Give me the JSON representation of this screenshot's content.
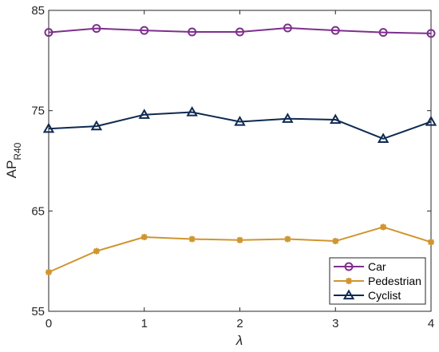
{
  "chart_data": {
    "type": "line",
    "title": "",
    "xlabel": "λ",
    "ylabel": "AP",
    "ylabel_subscript": "R40",
    "xlim": [
      0,
      4
    ],
    "ylim": [
      55,
      85
    ],
    "x_ticks": [
      0,
      1,
      2,
      3,
      4
    ],
    "y_ticks": [
      55,
      65,
      75,
      85
    ],
    "x_tick_labels": [
      "0",
      "1",
      "2",
      "3",
      "4"
    ],
    "y_tick_labels": [
      "55",
      "65",
      "75",
      "85"
    ],
    "grid": false,
    "legend_position": "bottom-right",
    "x": [
      0,
      0.5,
      1,
      1.5,
      2,
      2.5,
      3,
      3.5,
      4
    ],
    "series": [
      {
        "name": "Car",
        "color": "#7E2F8E",
        "marker": "circle",
        "values": [
          82.8,
          83.2,
          83.0,
          82.85,
          82.85,
          83.25,
          83.0,
          82.8,
          82.7
        ]
      },
      {
        "name": "Pedestrian",
        "color": "#D09530",
        "marker": "asterisk",
        "values": [
          58.9,
          61.0,
          62.4,
          62.2,
          62.1,
          62.2,
          62.0,
          63.4,
          61.9
        ]
      },
      {
        "name": "Cyclist",
        "color": "#0E2A52",
        "marker": "triangle",
        "values": [
          73.2,
          73.45,
          74.6,
          74.85,
          73.9,
          74.2,
          74.1,
          72.2,
          73.9
        ]
      }
    ]
  }
}
